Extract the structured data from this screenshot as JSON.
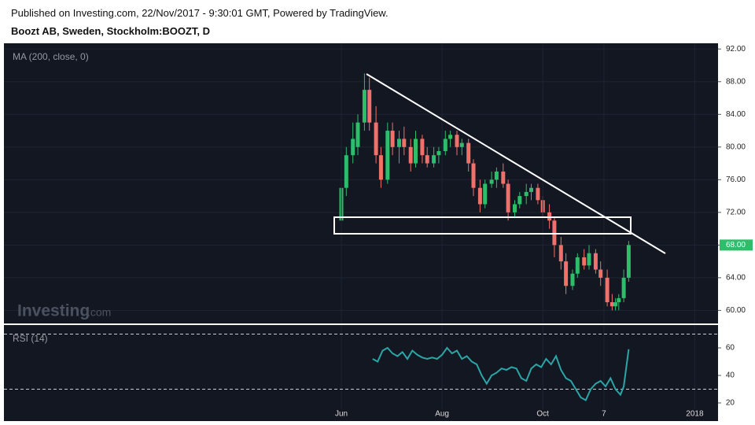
{
  "header": {
    "published": "Published on Investing.com, 22/Nov/2017 - 9:30:01 GMT, Powered by TradingView.",
    "symbol": "Boozt AB, Sweden, Stockholm:BOOZT, D"
  },
  "chart_data": [
    {
      "type": "candlestick",
      "indicator_label": "MA (200, close, 0)",
      "watermark": "Investing",
      "watermark_suffix": ".com",
      "up_color": "#2ebd6b",
      "down_color": "#f0706c",
      "x": [
        152,
        155,
        159,
        162,
        166,
        169,
        173,
        176,
        180,
        183,
        187,
        190,
        194,
        197,
        201,
        204,
        208,
        211,
        215,
        218,
        222,
        225,
        229,
        232,
        236,
        239,
        243,
        246,
        250,
        253,
        257,
        260,
        264,
        267,
        271,
        274,
        278,
        281,
        285,
        288,
        292,
        295,
        299,
        302,
        306,
        309,
        313,
        316,
        318,
        320,
        323,
        326
      ],
      "open": [
        71,
        75,
        79,
        80,
        83,
        87,
        83,
        79,
        76,
        82,
        80,
        81,
        80,
        78,
        81,
        79,
        78,
        79,
        79.5,
        81,
        81.5,
        80,
        80.5,
        78,
        75,
        73,
        75.5,
        76,
        77,
        75.5,
        72,
        73,
        74,
        74.5,
        75,
        73.5,
        72,
        71,
        68,
        66,
        63,
        64.5,
        66.5,
        65.5,
        67,
        65,
        64,
        61,
        60.5,
        61,
        61.5,
        64
      ],
      "high": [
        76,
        80,
        83,
        84,
        89,
        88.5,
        85,
        80,
        83,
        83,
        82,
        82.5,
        81,
        82,
        81.5,
        80,
        80,
        80,
        82,
        82,
        82,
        81,
        81,
        78.5,
        76,
        76,
        77,
        77.5,
        78,
        76,
        73.5,
        74.5,
        75.5,
        75.5,
        75.5,
        74,
        73,
        71.5,
        69,
        67,
        65,
        67,
        67.5,
        68,
        67.5,
        66,
        65,
        62,
        61.5,
        62,
        65,
        68.5
      ],
      "low": [
        70.5,
        74,
        78,
        79,
        82,
        82,
        78,
        75,
        75.5,
        79,
        78,
        79,
        77,
        77.5,
        78,
        77.5,
        77.5,
        78,
        79,
        80,
        79,
        79,
        77,
        74,
        72,
        72.5,
        75,
        75,
        75,
        71,
        71.5,
        72.5,
        73,
        73.5,
        73,
        71.5,
        70,
        66.5,
        65,
        62,
        62.5,
        64,
        65,
        65,
        64.5,
        63,
        60.5,
        60,
        60,
        60,
        61,
        63.5
      ],
      "close": [
        75,
        79,
        81,
        83,
        87,
        83,
        79,
        76,
        82,
        80,
        81,
        80,
        78,
        81,
        79,
        78,
        79,
        79.5,
        81,
        81.5,
        80,
        80.5,
        78,
        75,
        73,
        75.5,
        76,
        77,
        75.5,
        72,
        73,
        74,
        74.5,
        75,
        73.5,
        72,
        71,
        68,
        66,
        63,
        64.5,
        66.5,
        65.5,
        67,
        65,
        64,
        61,
        60.5,
        61,
        61.5,
        64,
        68
      ],
      "xlim": [
        -52.3,
        380.1
      ],
      "ylim": [
        58.4,
        92.7
      ],
      "yticks": [
        {
          "value": 60,
          "label": "60.00"
        },
        {
          "value": 64,
          "label": "64.00"
        },
        {
          "value": 68,
          "label": "68.00"
        },
        {
          "value": 72,
          "label": "72.00"
        },
        {
          "value": 76,
          "label": "76.00"
        },
        {
          "value": 80,
          "label": "80.00"
        },
        {
          "value": 84,
          "label": "84.00"
        },
        {
          "value": 88,
          "label": "88.00"
        },
        {
          "value": 92,
          "label": "92.00"
        }
      ],
      "last_price": {
        "value": 68,
        "label": "68.00"
      }
    },
    {
      "type": "line",
      "title": "RSI (14)",
      "color": "#2aa6a6",
      "x": [
        171,
        174,
        177,
        180,
        183,
        186,
        189,
        192,
        195,
        198,
        201,
        204,
        207,
        210,
        213,
        216,
        219,
        222,
        225,
        228,
        231,
        234,
        237,
        240,
        243,
        246,
        249,
        252,
        255,
        258,
        261,
        264,
        267,
        270,
        273,
        276,
        279,
        282,
        285,
        288,
        291,
        294,
        297,
        300,
        303,
        306,
        309,
        312,
        315,
        318,
        321,
        323,
        326
      ],
      "values": [
        52,
        50,
        58,
        60,
        56,
        54,
        57,
        52,
        58,
        55,
        53,
        52,
        53,
        52,
        55,
        60,
        56,
        58,
        52,
        54,
        50,
        48,
        40,
        34,
        40,
        42,
        45,
        44,
        46,
        45,
        38,
        36,
        45,
        48,
        46,
        52,
        48,
        54,
        44,
        38,
        36,
        30,
        24,
        22,
        30,
        34,
        36,
        32,
        38,
        30,
        26,
        32,
        59
      ],
      "xlim": [
        -52.3,
        380.1
      ],
      "ylim": [
        15.4,
        76.6
      ],
      "yticks": [
        20,
        40,
        60
      ],
      "bands": [
        70,
        30
      ],
      "xticks": [
        {
          "value": 152,
          "label": "Jun"
        },
        {
          "value": 213,
          "label": "Aug"
        },
        {
          "value": 274,
          "label": "Oct"
        },
        {
          "value": 311,
          "label": "7"
        },
        {
          "value": 366,
          "label": "2018"
        }
      ]
    }
  ]
}
